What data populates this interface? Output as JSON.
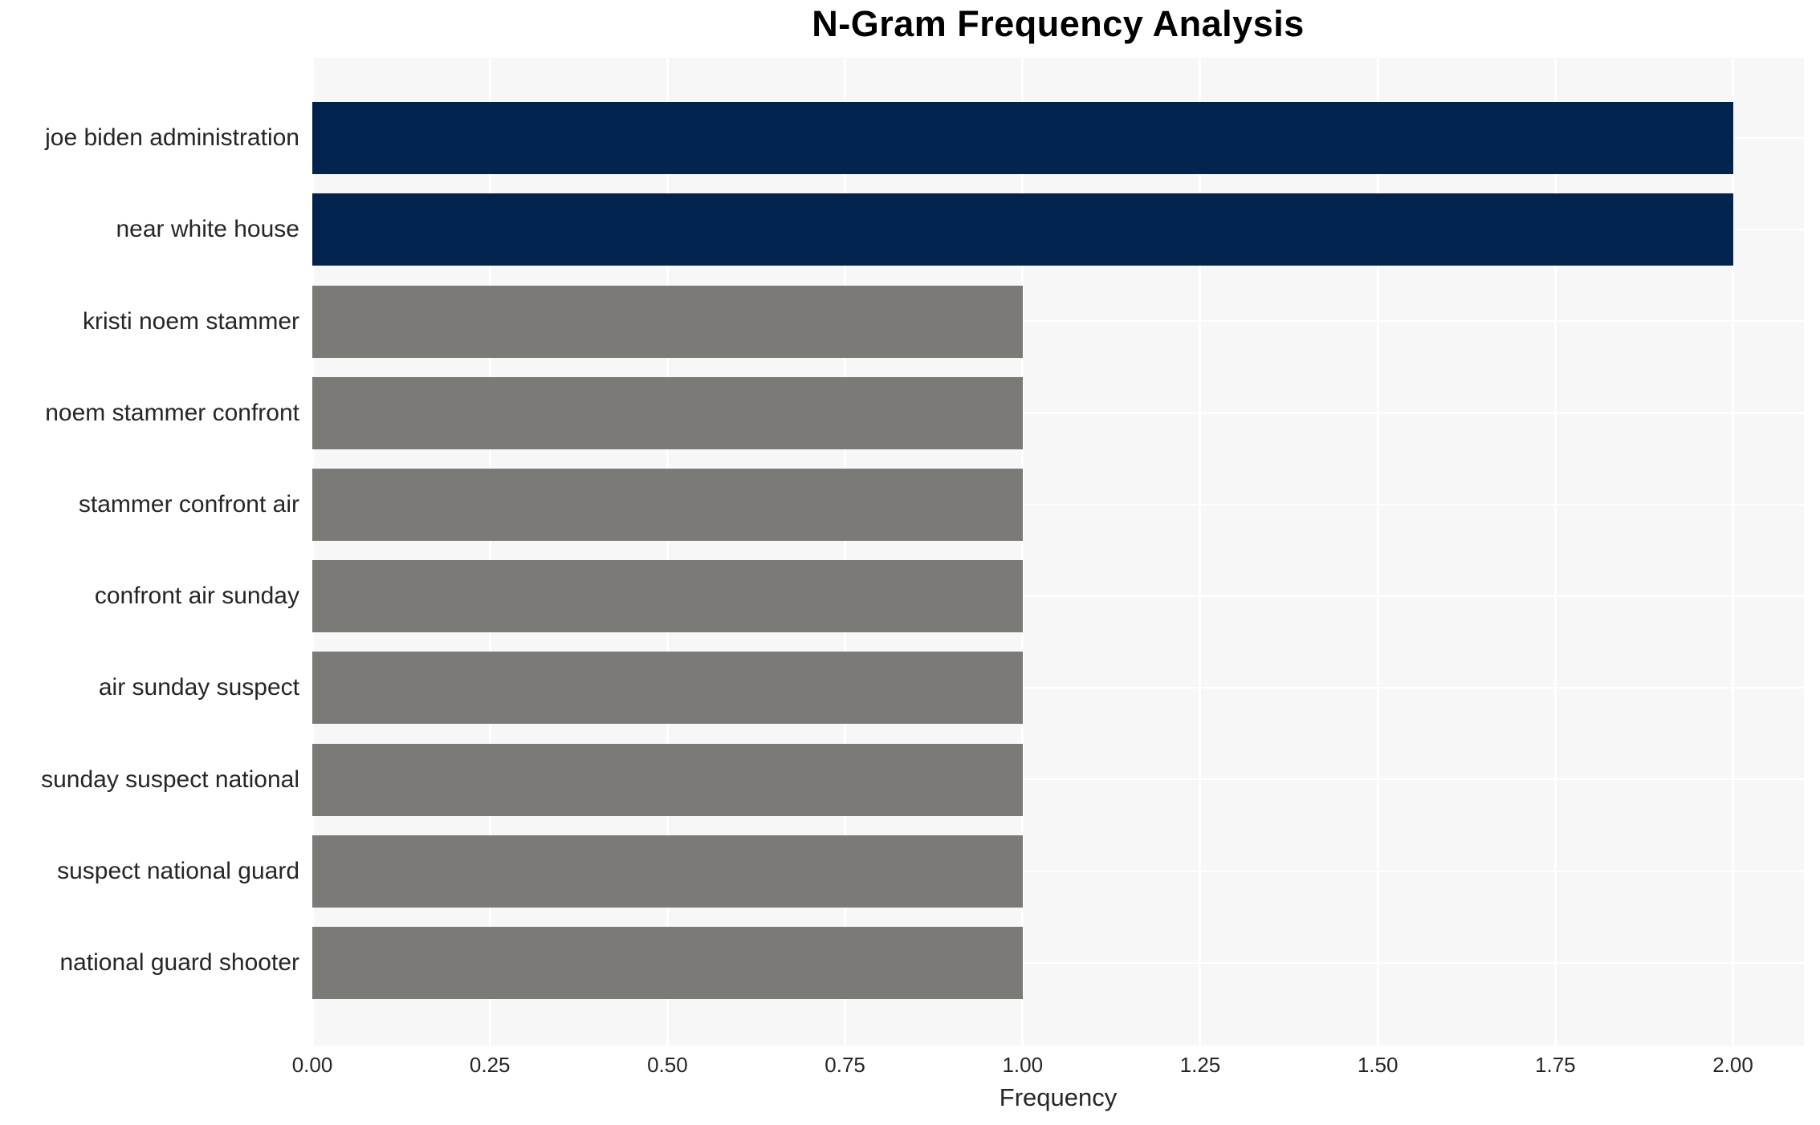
{
  "chart_data": {
    "type": "bar",
    "orientation": "horizontal",
    "title": "N-Gram Frequency Analysis",
    "xlabel": "Frequency",
    "ylabel": "",
    "categories": [
      "joe biden administration",
      "near white house",
      "kristi noem stammer",
      "noem stammer confront",
      "stammer confront air",
      "confront air sunday",
      "air sunday suspect",
      "sunday suspect national",
      "suspect national guard",
      "national guard shooter"
    ],
    "values": [
      2,
      2,
      1,
      1,
      1,
      1,
      1,
      1,
      1,
      1
    ],
    "bar_colors": [
      "#02234e",
      "#02234e",
      "#7b7a77",
      "#7b7a77",
      "#7b7a77",
      "#7b7a77",
      "#7b7a77",
      "#7b7a77",
      "#7b7a77",
      "#7b7a77"
    ],
    "xlim": [
      0,
      2.1
    ],
    "xticks": [
      0,
      0.25,
      0.5,
      0.75,
      1.0,
      1.25,
      1.5,
      1.75,
      2.0
    ],
    "xtick_labels": [
      "0.00",
      "0.25",
      "0.50",
      "0.75",
      "1.00",
      "1.25",
      "1.50",
      "1.75",
      "2.00"
    ],
    "grid": true,
    "legend_position": "none",
    "colors": {
      "navy": "#02234e",
      "gray": "#7b7a77",
      "plot_background": "#f7f7f7",
      "gridline": "#ffffff",
      "tick_text": "#262626",
      "title_text": "#000000"
    }
  }
}
